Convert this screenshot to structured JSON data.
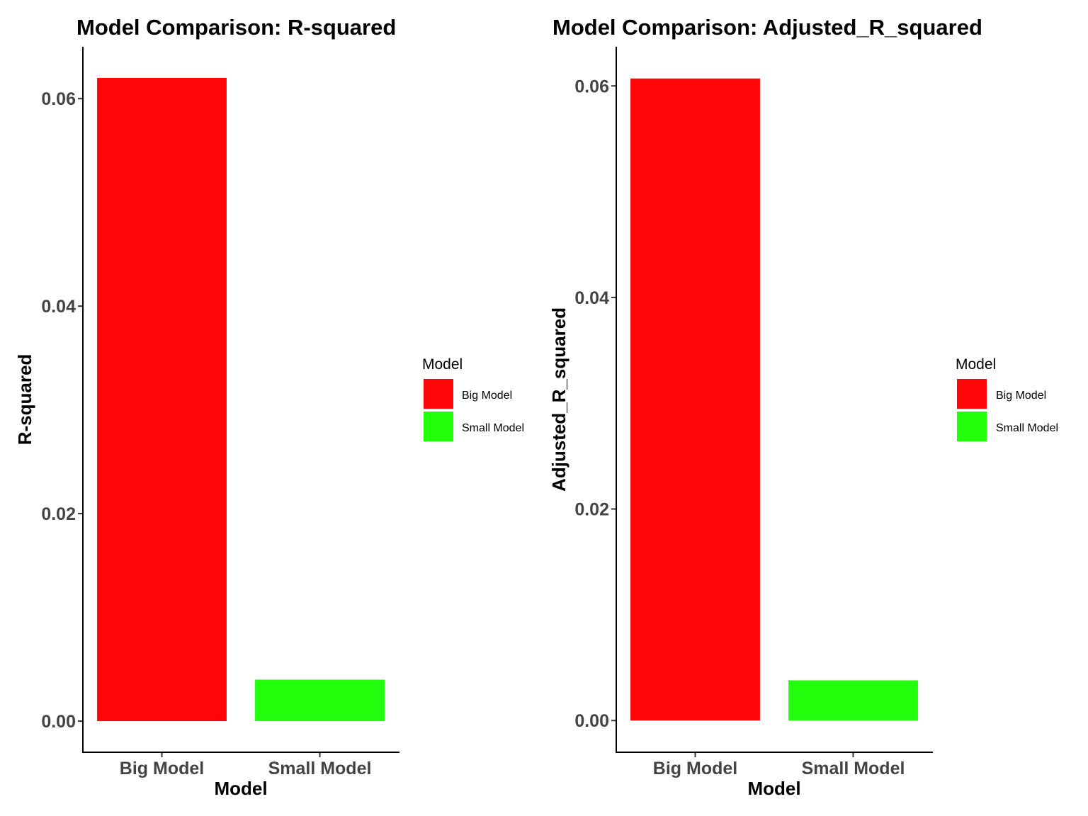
{
  "chart_data": [
    {
      "type": "bar",
      "title": "Model Comparison: R-squared",
      "xlabel": "Model",
      "ylabel": "R-squared",
      "categories": [
        "Big Model",
        "Small Model"
      ],
      "values": [
        0.062,
        0.004
      ],
      "colors": [
        "#ff0509",
        "#22ff0d"
      ],
      "ylim": [
        -0.003,
        0.065
      ],
      "yticks": [
        0.0,
        0.02,
        0.04,
        0.06
      ],
      "ytick_labels": [
        "0.00",
        "0.02",
        "0.04",
        "0.06"
      ],
      "grid": false,
      "legend": {
        "title": "Model",
        "placement": "right",
        "entries": [
          "Big Model",
          "Small Model"
        ]
      }
    },
    {
      "type": "bar",
      "title": "Model Comparison: Adjusted_R_squared",
      "xlabel": "Model",
      "ylabel": "Adjusted_R_squared",
      "categories": [
        "Big Model",
        "Small Model"
      ],
      "values": [
        0.0607,
        0.0038
      ],
      "colors": [
        "#ff0509",
        "#22ff0d"
      ],
      "ylim": [
        -0.003,
        0.0637
      ],
      "yticks": [
        0.0,
        0.02,
        0.04,
        0.06
      ],
      "ytick_labels": [
        "0.00",
        "0.02",
        "0.04",
        "0.06"
      ],
      "grid": false,
      "legend": {
        "title": "Model",
        "placement": "right",
        "entries": [
          "Big Model",
          "Small Model"
        ]
      }
    }
  ]
}
